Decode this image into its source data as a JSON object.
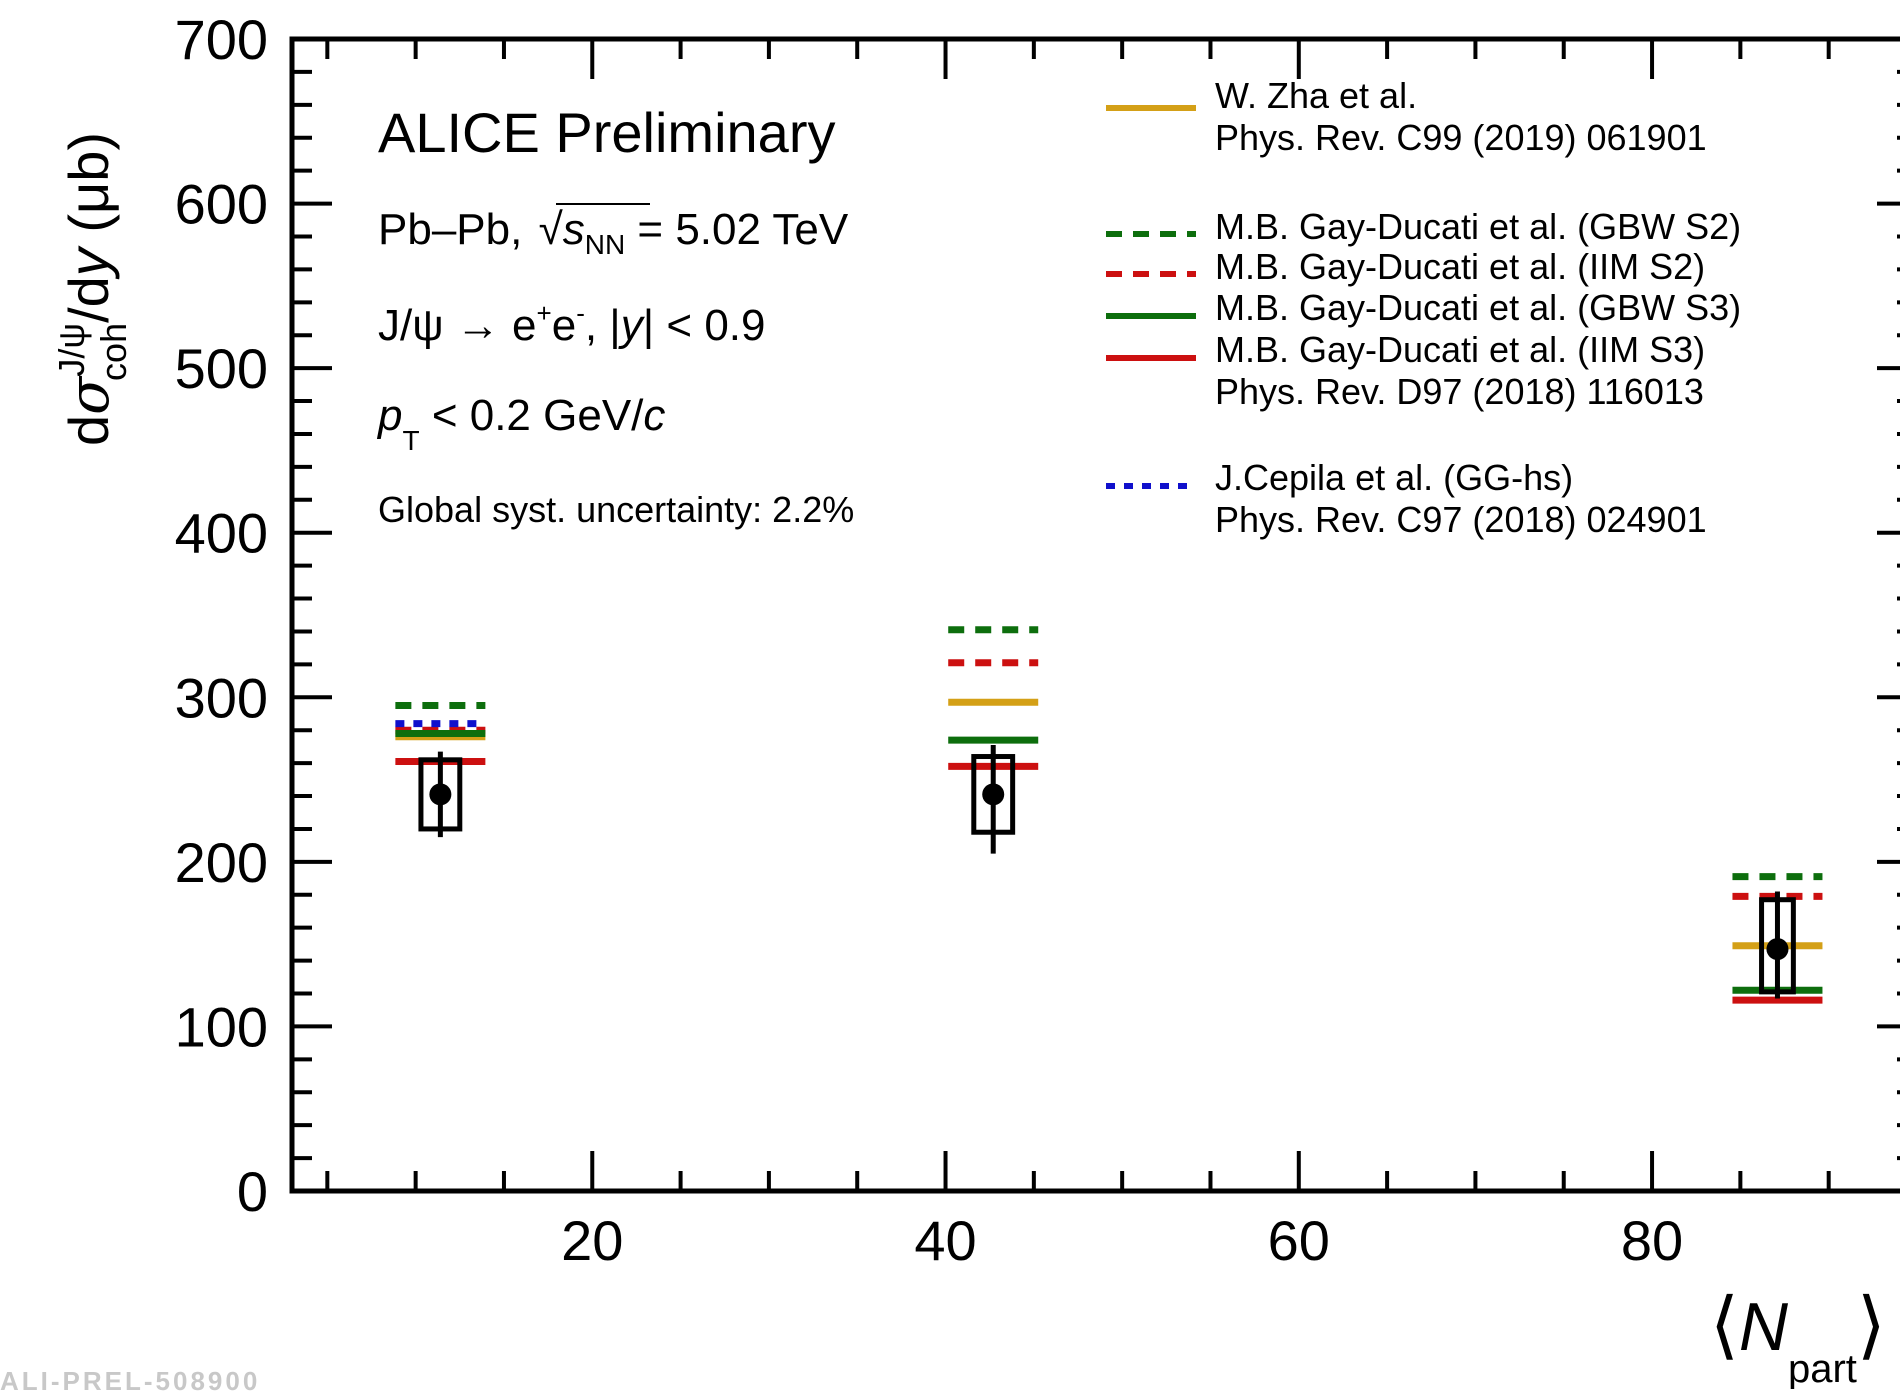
{
  "page": {
    "footer_text": "ALI-PREL-508900"
  },
  "chart_data": {
    "type": "scatter",
    "xlabel": "⟨N_part⟩",
    "ylabel": "dσ_coh^{J/ψ}/dy (μb)",
    "xlim": [
      3,
      95
    ],
    "ylim": [
      0,
      700
    ],
    "x_ticks": [
      20,
      40,
      60,
      80
    ],
    "y_ticks": [
      0,
      100,
      200,
      300,
      400,
      500,
      600,
      700
    ],
    "grid": false,
    "legend_position": "top-right",
    "annotations": {
      "experiment": "ALICE Preliminary",
      "system_prefix": "Pb–Pb, ",
      "energy_suffix": " = 5.02 TeV",
      "decay_prefix": "J/ψ  → e",
      "decay_mid": "e",
      "decay_suffix": ", |",
      "rapidity_cut": "| < 0.9",
      "pt_suffix": " < 0.2 GeV/",
      "global_syst": "Global syst. uncertainty: 2.2%"
    },
    "data_series": {
      "name": "ALICE",
      "points": [
        {
          "x": 11.4,
          "y": 241,
          "stat_lo": 215,
          "stat_hi": 267,
          "sys_lo": 220,
          "sys_hi": 262,
          "box_halfwidth": 1.1
        },
        {
          "x": 42.7,
          "y": 241,
          "stat_lo": 205,
          "stat_hi": 271,
          "sys_lo": 218,
          "sys_hi": 264,
          "box_halfwidth": 1.1
        },
        {
          "x": 87.1,
          "y": 147,
          "stat_lo": 117,
          "stat_hi": 182,
          "sys_lo": 121,
          "sys_hi": 177,
          "box_halfwidth": 0.9
        }
      ]
    },
    "models": [
      {
        "name": "W. Zha et al.",
        "ref": "Phys. Rev. C99 (2019) 061901",
        "color": "#d4a017",
        "style": "solid",
        "values": [
          276,
          297,
          149
        ]
      },
      {
        "name": "M.B. Gay-Ducati et al. (GBW S2)",
        "ref": "",
        "color": "#0d6e0d",
        "style": "dashed",
        "values": [
          295,
          341,
          191
        ]
      },
      {
        "name": "M.B. Gay-Ducati et al. (IIM S2)",
        "ref": "",
        "color": "#cc1010",
        "style": "dashed",
        "values": [
          280,
          321,
          179
        ]
      },
      {
        "name": "M.B. Gay-Ducati et al. (GBW S3)",
        "ref": "",
        "color": "#0d6e0d",
        "style": "solid",
        "values": [
          278,
          274,
          122
        ]
      },
      {
        "name": "M.B. Gay-Ducati et al. (IIM S3)",
        "ref": "Phys. Rev. D97 (2018) 116013",
        "color": "#cc1010",
        "style": "solid",
        "values": [
          261,
          258,
          116
        ]
      },
      {
        "name": "J.Cepila et al. (GG-hs)",
        "ref": "Phys. Rev. C97 (2018) 024901",
        "color": "#1010cc",
        "style": "dotted",
        "values": [
          284,
          null,
          null
        ]
      }
    ]
  }
}
